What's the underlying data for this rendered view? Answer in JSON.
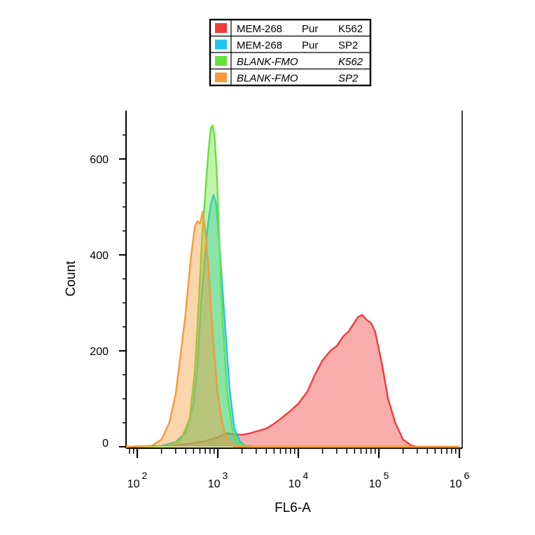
{
  "chart_data": {
    "type": "area",
    "title": "",
    "xlabel": "FL6-A",
    "ylabel": "Count",
    "x_scale": "log10",
    "xlim": [
      50,
      1000000
    ],
    "ylim": [
      0,
      680
    ],
    "grid": false,
    "legend_placement": "top-center, outside plot",
    "x_ticks": [
      {
        "base": "10",
        "exp": "2",
        "value": 100
      },
      {
        "base": "10",
        "exp": "3",
        "value": 1000
      },
      {
        "base": "10",
        "exp": "4",
        "value": 10000
      },
      {
        "base": "10",
        "exp": "5",
        "value": 100000
      },
      {
        "base": "10",
        "exp": "6",
        "value": 1000000
      }
    ],
    "y_ticks": [
      "0",
      "200",
      "400",
      "600"
    ],
    "y_tick_values": [
      0,
      200,
      400,
      600
    ],
    "series": [
      {
        "name": "MEM-268 Pur K562",
        "legend": {
          "antibody": "MEM-268",
          "form": "Pur",
          "cell": "K562",
          "italic": false
        },
        "color": "#ef3b3b",
        "x": [
          50,
          200,
          400,
          700,
          1000,
          1300,
          1600,
          2000,
          2500,
          3000,
          4000,
          5000,
          6000,
          8000,
          10000,
          13000,
          16000,
          20000,
          25000,
          30000,
          36000,
          42000,
          48000,
          55000,
          62000,
          70000,
          80000,
          90000,
          110000,
          130000,
          160000,
          200000,
          250000,
          300000,
          1000000
        ],
        "y": [
          0,
          2,
          5,
          12,
          20,
          28,
          26,
          25,
          28,
          32,
          38,
          48,
          58,
          75,
          90,
          115,
          150,
          180,
          200,
          210,
          230,
          240,
          255,
          270,
          275,
          265,
          258,
          240,
          170,
          100,
          50,
          15,
          3,
          0,
          0
        ]
      },
      {
        "name": "MEM-268 Pur SP2",
        "legend": {
          "antibody": "MEM-268",
          "form": "Pur",
          "cell": "SP2",
          "italic": false
        },
        "color": "#1ec3f0",
        "x": [
          50,
          200,
          300,
          400,
          500,
          560,
          620,
          680,
          750,
          820,
          880,
          950,
          1050,
          1200,
          1400,
          1600,
          1900,
          2200,
          3000,
          1000000
        ],
        "y": [
          0,
          2,
          10,
          30,
          90,
          170,
          300,
          380,
          460,
          505,
          525,
          510,
          420,
          280,
          120,
          40,
          10,
          2,
          0,
          0
        ]
      },
      {
        "name": "BLANK-FMO K562",
        "legend": {
          "antibody": "BLANK-FMO",
          "form": "",
          "cell": "K562",
          "italic": true
        },
        "color": "#66e23a",
        "x": [
          50,
          250,
          350,
          450,
          520,
          580,
          640,
          700,
          760,
          820,
          870,
          920,
          980,
          1050,
          1150,
          1300,
          1500,
          1800,
          2300,
          1000000
        ],
        "y": [
          0,
          2,
          15,
          60,
          160,
          300,
          440,
          530,
          610,
          665,
          670,
          640,
          560,
          420,
          260,
          120,
          40,
          8,
          0,
          0
        ]
      },
      {
        "name": "BLANK-FMO SP2",
        "legend": {
          "antibody": "BLANK-FMO",
          "form": "",
          "cell": "SP2",
          "italic": true
        },
        "color": "#f59a3a",
        "x": [
          50,
          150,
          200,
          250,
          300,
          350,
          400,
          460,
          520,
          560,
          600,
          650,
          700,
          760,
          830,
          900,
          1000,
          1150,
          1300,
          1600,
          1000000
        ],
        "y": [
          0,
          2,
          15,
          50,
          110,
          200,
          280,
          390,
          460,
          470,
          465,
          490,
          450,
          380,
          280,
          200,
          110,
          45,
          15,
          0,
          0
        ]
      }
    ]
  }
}
